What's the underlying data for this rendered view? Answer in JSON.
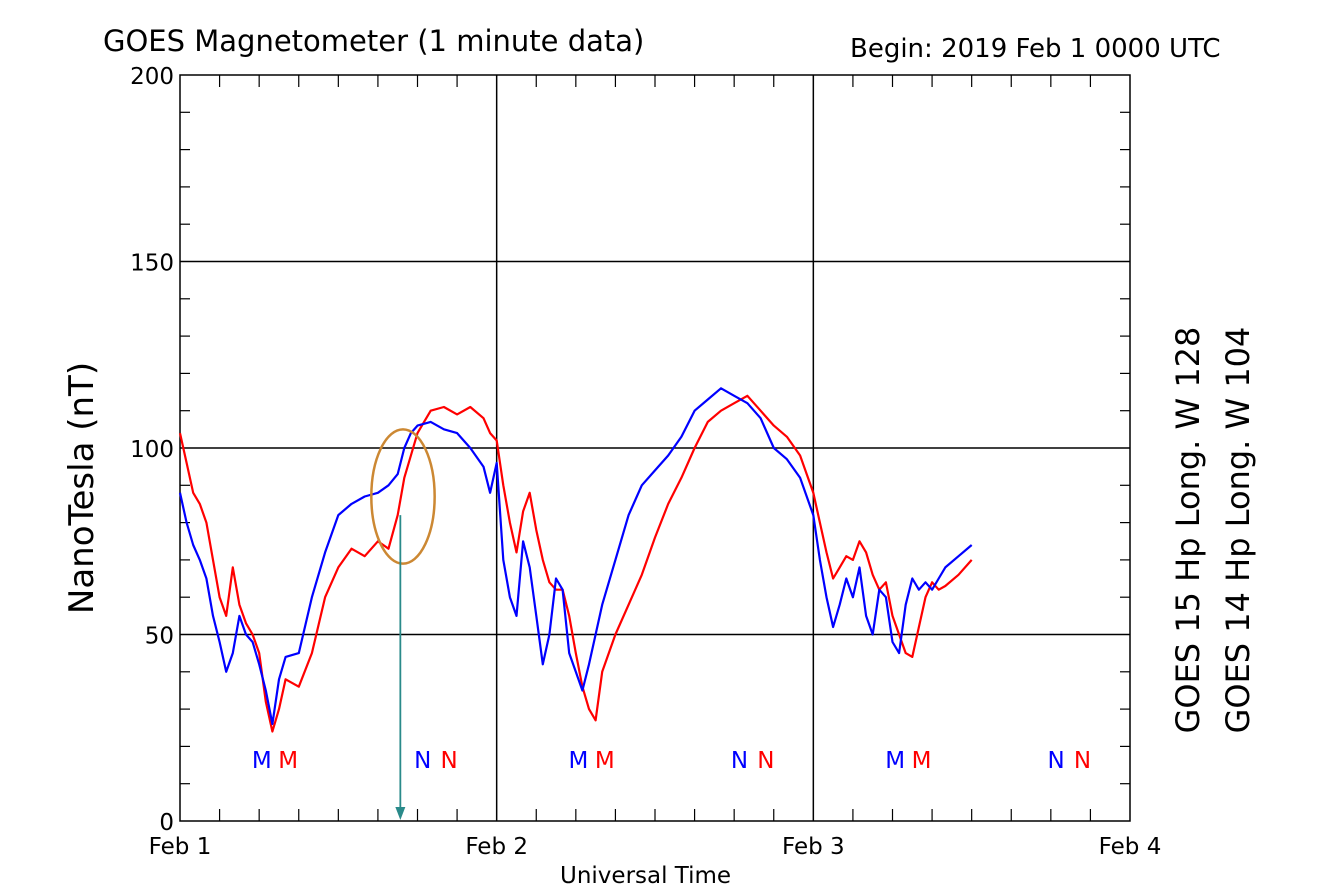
{
  "chart_data": {
    "type": "line",
    "title": "GOES Magnetometer (1 minute data)",
    "subtitle": "Begin:  2019 Feb 1 0000 UTC",
    "xlabel": "Universal Time",
    "ylabel": "NanoTesla (nT)",
    "x_ticks": [
      "Feb 1",
      "Feb 2",
      "Feb 3",
      "Feb 4"
    ],
    "y_ticks": [
      "0",
      "50",
      "100",
      "150",
      "200"
    ],
    "xlim": [
      0,
      72
    ],
    "ylim": [
      0,
      200
    ],
    "x_unit": "hours since Feb 1 0000 UTC",
    "grid": true,
    "legend_position": "right (vertical)",
    "series": [
      {
        "name": "GOES 15 Hp  Long. W 128",
        "color": "#ff0000",
        "x": [
          0,
          0.5,
          1,
          1.5,
          2,
          2.5,
          3,
          3.5,
          4,
          4.5,
          5,
          5.5,
          6,
          6.5,
          7,
          7.5,
          8,
          9,
          10,
          11,
          12,
          13,
          14,
          15,
          15.8,
          16.5,
          17,
          17.5,
          18,
          19,
          20,
          21,
          22,
          23,
          23.5,
          24,
          24.5,
          25,
          25.5,
          26,
          26.5,
          27,
          27.5,
          28,
          28.5,
          29,
          29.5,
          30,
          30.5,
          31,
          31.5,
          32,
          33,
          34,
          35,
          36,
          37,
          38,
          39,
          40,
          41,
          42,
          43,
          44,
          45,
          46,
          47,
          48,
          48.5,
          49,
          49.5,
          50,
          50.5,
          51,
          51.5,
          52,
          52.5,
          53,
          53.5,
          54,
          54.5,
          55,
          55.5,
          56,
          56.5,
          57,
          57.5,
          58,
          59,
          60
        ],
        "y": [
          104,
          96,
          88,
          85,
          80,
          70,
          60,
          55,
          68,
          58,
          53,
          50,
          45,
          32,
          24,
          30,
          38,
          36,
          45,
          60,
          68,
          73,
          71,
          75,
          73,
          82,
          92,
          98,
          104,
          110,
          111,
          109,
          111,
          108,
          104,
          102,
          90,
          80,
          72,
          83,
          88,
          78,
          70,
          64,
          62,
          62,
          55,
          45,
          36,
          30,
          27,
          40,
          50,
          58,
          66,
          76,
          85,
          92,
          100,
          107,
          110,
          112,
          114,
          110,
          106,
          103,
          98,
          88,
          80,
          72,
          65,
          68,
          71,
          70,
          75,
          72,
          66,
          62,
          64,
          55,
          50,
          45,
          44,
          52,
          60,
          64,
          62,
          63,
          66,
          70
        ]
      },
      {
        "name": "GOES 14 Hp  Long. W 104",
        "color": "#0000ff",
        "x": [
          0,
          0.5,
          1,
          1.5,
          2,
          2.5,
          3,
          3.5,
          4,
          4.5,
          5,
          5.5,
          6,
          6.5,
          7,
          7.5,
          8,
          9,
          10,
          11,
          12,
          13,
          14,
          15,
          15.8,
          16.5,
          17,
          17.5,
          18,
          19,
          20,
          21,
          22,
          23,
          23.5,
          24,
          24.5,
          25,
          25.5,
          26,
          26.5,
          27,
          27.5,
          28,
          28.5,
          29,
          29.5,
          30,
          30.5,
          31,
          31.5,
          32,
          33,
          34,
          35,
          36,
          37,
          38,
          39,
          40,
          41,
          42,
          43,
          44,
          45,
          46,
          47,
          48,
          48.5,
          49,
          49.5,
          50,
          50.5,
          51,
          51.5,
          52,
          52.5,
          53,
          53.5,
          54,
          54.5,
          55,
          55.5,
          56,
          56.5,
          57,
          57.5,
          58,
          59,
          60
        ],
        "y": [
          88,
          80,
          74,
          70,
          65,
          55,
          48,
          40,
          45,
          55,
          50,
          48,
          42,
          35,
          26,
          38,
          44,
          45,
          60,
          72,
          82,
          85,
          87,
          88,
          90,
          93,
          100,
          104,
          106,
          107,
          105,
          104,
          100,
          95,
          88,
          96,
          70,
          60,
          55,
          75,
          68,
          55,
          42,
          50,
          65,
          62,
          45,
          40,
          35,
          42,
          50,
          58,
          70,
          82,
          90,
          94,
          98,
          103,
          110,
          113,
          116,
          114,
          112,
          108,
          100,
          97,
          92,
          82,
          70,
          60,
          52,
          58,
          65,
          60,
          68,
          55,
          50,
          62,
          60,
          48,
          45,
          58,
          65,
          62,
          64,
          62,
          65,
          68,
          71,
          74
        ]
      }
    ],
    "annotations": {
      "markers": [
        {
          "label": "M",
          "x": 6.2,
          "color": "#0000ff"
        },
        {
          "label": "M",
          "x": 8.2,
          "color": "#ff0000"
        },
        {
          "label": "N",
          "x": 18.4,
          "color": "#0000ff"
        },
        {
          "label": "N",
          "x": 20.4,
          "color": "#ff0000"
        },
        {
          "label": "M",
          "x": 30.2,
          "color": "#0000ff"
        },
        {
          "label": "M",
          "x": 32.2,
          "color": "#ff0000"
        },
        {
          "label": "N",
          "x": 42.4,
          "color": "#0000ff"
        },
        {
          "label": "N",
          "x": 44.4,
          "color": "#ff0000"
        },
        {
          "label": "M",
          "x": 54.2,
          "color": "#0000ff"
        },
        {
          "label": "M",
          "x": 56.2,
          "color": "#ff0000"
        },
        {
          "label": "N",
          "x": 66.4,
          "color": "#0000ff"
        },
        {
          "label": "N",
          "x": 68.4,
          "color": "#ff0000"
        }
      ],
      "highlight_ellipse": {
        "x_center": 16.9,
        "y_center": 87,
        "x_radius": 2.4,
        "y_radius": 18,
        "color": "#cc8833"
      },
      "arrow": {
        "x": 16.7,
        "y_from": 82,
        "y_to": 0,
        "color": "#2a8a8a"
      }
    }
  }
}
